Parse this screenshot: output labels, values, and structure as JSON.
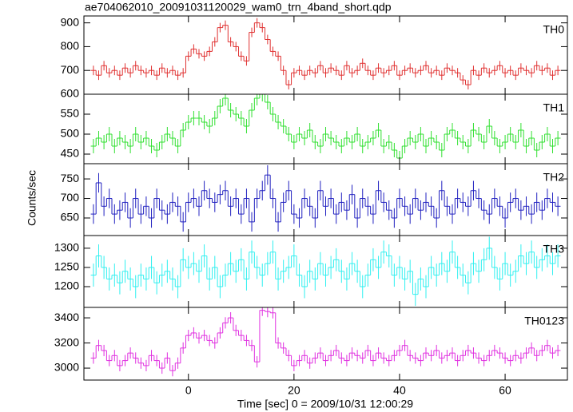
{
  "chart_data": {
    "type": "step",
    "title": "ae704062010_20091031120029_wam0_trn_4band_short.qdp",
    "xlabel": "Time [sec] 0 = 2009/10/31 12:00:29",
    "ylabel": "Counts/sec",
    "xlim": [
      -19.8,
      71.8
    ],
    "xticks": [
      0,
      20,
      40,
      60
    ],
    "x": [
      -18,
      -17,
      -16,
      -15,
      -14,
      -13,
      -12,
      -11,
      -10,
      -9,
      -8,
      -7,
      -6,
      -5,
      -4,
      -3,
      -2,
      -1,
      0,
      1,
      2,
      3,
      4,
      5,
      6,
      7,
      8,
      9,
      10,
      11,
      12,
      13,
      14,
      15,
      16,
      17,
      18,
      19,
      20,
      21,
      22,
      23,
      24,
      25,
      26,
      27,
      28,
      29,
      30,
      31,
      32,
      33,
      34,
      35,
      36,
      37,
      38,
      39,
      40,
      41,
      42,
      43,
      44,
      45,
      46,
      47,
      48,
      49,
      50,
      51,
      52,
      53,
      54,
      55,
      56,
      57,
      58,
      59,
      60,
      61,
      62,
      63,
      64,
      65,
      66,
      67,
      68,
      69,
      70
    ],
    "series": [
      {
        "name": "TH0",
        "color": "#e03030",
        "error": 20,
        "ylim": [
          600,
          929
        ],
        "yticks": [
          600,
          700,
          800,
          900
        ],
        "values": [
          700,
          680,
          720,
          690,
          700,
          680,
          710,
          690,
          720,
          700,
          690,
          700,
          680,
          710,
          690,
          700,
          680,
          690,
          760,
          790,
          770,
          760,
          780,
          820,
          880,
          890,
          820,
          800,
          760,
          740,
          860,
          900,
          880,
          830,
          780,
          760,
          700,
          640,
          690,
          700,
          680,
          700,
          690,
          720,
          690,
          710,
          700,
          680,
          720,
          690,
          700,
          730,
          700,
          680,
          710,
          690,
          700,
          720,
          680,
          700,
          710,
          690,
          700,
          720,
          690,
          700,
          680,
          710,
          700,
          690,
          660,
          640,
          700,
          680,
          710,
          690,
          700,
          720,
          690,
          700,
          680,
          710,
          700,
          690,
          720,
          700,
          710,
          680,
          700
        ]
      },
      {
        "name": "TH1",
        "color": "#30e030",
        "error": 18,
        "ylim": [
          426,
          600
        ],
        "yticks": [
          450,
          500,
          550
        ],
        "values": [
          470,
          490,
          480,
          500,
          470,
          490,
          480,
          470,
          500,
          480,
          490,
          470,
          460,
          480,
          500,
          490,
          470,
          510,
          530,
          540,
          540,
          530,
          520,
          540,
          570,
          590,
          560,
          550,
          540,
          520,
          560,
          590,
          600,
          580,
          550,
          530,
          520,
          500,
          480,
          500,
          490,
          510,
          480,
          470,
          500,
          490,
          480,
          470,
          490,
          480,
          500,
          470,
          480,
          490,
          510,
          470,
          480,
          460,
          440,
          470,
          490,
          480,
          500,
          470,
          490,
          480,
          460,
          500,
          510,
          490,
          480,
          470,
          510,
          500,
          480,
          520,
          490,
          470,
          480,
          500,
          480,
          510,
          470,
          490,
          460,
          480,
          500,
          470,
          490
        ]
      },
      {
        "name": "TH2",
        "color": "#2020c0",
        "error": 25,
        "ylim": [
          605,
          789
        ],
        "yticks": [
          650,
          700,
          750
        ],
        "values": [
          660,
          740,
          680,
          700,
          660,
          670,
          690,
          650,
          700,
          660,
          680,
          650,
          700,
          670,
          660,
          690,
          680,
          640,
          690,
          700,
          680,
          720,
          700,
          690,
          710,
          720,
          680,
          700,
          660,
          700,
          640,
          700,
          720,
          760,
          700,
          640,
          690,
          720,
          660,
          650,
          700,
          680,
          650,
          720,
          680,
          700,
          660,
          690,
          670,
          710,
          650,
          700,
          680,
          660,
          720,
          690,
          670,
          650,
          700,
          680,
          660,
          700,
          670,
          690,
          680,
          650,
          720,
          680,
          660,
          700,
          690,
          680,
          720,
          700,
          670,
          660,
          700,
          680,
          650,
          690,
          700,
          670,
          680,
          660,
          690,
          670,
          700,
          690,
          680
        ]
      },
      {
        "name": "TH3",
        "color": "#30f0f0",
        "error": 30,
        "ylim": [
          1146,
          1333
        ],
        "yticks": [
          1200,
          1250,
          1300
        ],
        "values": [
          1230,
          1280,
          1250,
          1220,
          1230,
          1210,
          1240,
          1220,
          1200,
          1230,
          1220,
          1250,
          1210,
          1230,
          1240,
          1220,
          1200,
          1270,
          1250,
          1260,
          1240,
          1280,
          1220,
          1250,
          1200,
          1230,
          1260,
          1240,
          1270,
          1220,
          1290,
          1250,
          1230,
          1260,
          1290,
          1220,
          1240,
          1250,
          1280,
          1230,
          1200,
          1240,
          1220,
          1260,
          1230,
          1250,
          1270,
          1240,
          1220,
          1260,
          1240,
          1200,
          1230,
          1270,
          1250,
          1290,
          1280,
          1230,
          1250,
          1220,
          1240,
          1180,
          1220,
          1200,
          1250,
          1230,
          1260,
          1240,
          1290,
          1250,
          1230,
          1210,
          1260,
          1240,
          1270,
          1300,
          1250,
          1220,
          1260,
          1230,
          1240,
          1280,
          1260,
          1290,
          1250,
          1270,
          1280,
          1260,
          1280
        ]
      },
      {
        "name": "TH0123",
        "color": "#e030e0",
        "error": 45,
        "ylim": [
          2905,
          3483
        ],
        "yticks": [
          3000,
          3200,
          3400
        ],
        "values": [
          3080,
          3180,
          3140,
          3060,
          3100,
          3020,
          3060,
          3120,
          3080,
          3040,
          3020,
          3100,
          3060,
          3000,
          3080,
          2980,
          3040,
          3160,
          3260,
          3280,
          3240,
          3260,
          3220,
          3200,
          3280,
          3360,
          3400,
          3300,
          3260,
          3220,
          3180,
          3050,
          3460,
          3450,
          3440,
          3200,
          3160,
          3100,
          3020,
          3060,
          3100,
          3040,
          3080,
          3120,
          3060,
          3100,
          3140,
          3080,
          3060,
          3120,
          3100,
          3080,
          3140,
          3060,
          3120,
          3080,
          3060,
          3100,
          3140,
          3180,
          3100,
          3080,
          3060,
          3120,
          3100,
          3140,
          3080,
          3100,
          3120,
          3060,
          3100,
          3140,
          3120,
          3080,
          3060,
          3100,
          3140,
          3120,
          3080,
          3060,
          3100,
          3080,
          3120,
          3160,
          3100,
          3140,
          3180,
          3120,
          3140
        ]
      }
    ]
  }
}
